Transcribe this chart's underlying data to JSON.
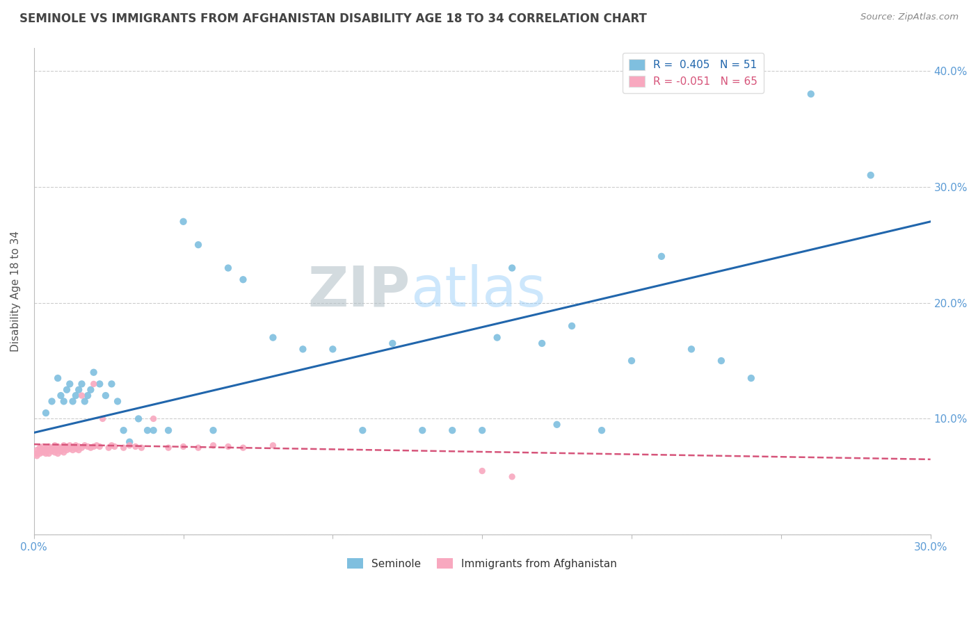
{
  "title": "SEMINOLE VS IMMIGRANTS FROM AFGHANISTAN DISABILITY AGE 18 TO 34 CORRELATION CHART",
  "source": "Source: ZipAtlas.com",
  "ylabel": "Disability Age 18 to 34",
  "xlim": [
    0.0,
    0.3
  ],
  "ylim": [
    0.0,
    0.42
  ],
  "xticks": [
    0.0,
    0.05,
    0.1,
    0.15,
    0.2,
    0.25,
    0.3
  ],
  "yticks": [
    0.0,
    0.1,
    0.2,
    0.3,
    0.4
  ],
  "ytick_labels": [
    "",
    "10.0%",
    "20.0%",
    "30.0%",
    "40.0%"
  ],
  "blue_color": "#7fbfdf",
  "pink_color": "#f8a8bf",
  "blue_line_color": "#2166ac",
  "pink_line_color": "#d6547a",
  "watermark_zip": "ZIP",
  "watermark_atlas": "atlas",
  "seminole_x": [
    0.004,
    0.006,
    0.008,
    0.009,
    0.01,
    0.011,
    0.012,
    0.013,
    0.014,
    0.015,
    0.016,
    0.017,
    0.018,
    0.019,
    0.02,
    0.022,
    0.024,
    0.026,
    0.028,
    0.03,
    0.032,
    0.035,
    0.038,
    0.04,
    0.045,
    0.05,
    0.055,
    0.06,
    0.065,
    0.07,
    0.08,
    0.09,
    0.1,
    0.11,
    0.12,
    0.13,
    0.14,
    0.15,
    0.155,
    0.16,
    0.17,
    0.175,
    0.18,
    0.19,
    0.2,
    0.21,
    0.22,
    0.23,
    0.24,
    0.26,
    0.28
  ],
  "seminole_y": [
    0.105,
    0.115,
    0.135,
    0.12,
    0.115,
    0.125,
    0.13,
    0.115,
    0.12,
    0.125,
    0.13,
    0.115,
    0.12,
    0.125,
    0.14,
    0.13,
    0.12,
    0.13,
    0.115,
    0.09,
    0.08,
    0.1,
    0.09,
    0.09,
    0.09,
    0.27,
    0.25,
    0.09,
    0.23,
    0.22,
    0.17,
    0.16,
    0.16,
    0.09,
    0.165,
    0.09,
    0.09,
    0.09,
    0.17,
    0.23,
    0.165,
    0.095,
    0.18,
    0.09,
    0.15,
    0.24,
    0.16,
    0.15,
    0.135,
    0.38,
    0.31
  ],
  "afghan_x": [
    0.001,
    0.001,
    0.001,
    0.002,
    0.002,
    0.002,
    0.003,
    0.003,
    0.003,
    0.004,
    0.004,
    0.004,
    0.005,
    0.005,
    0.005,
    0.006,
    0.006,
    0.007,
    0.007,
    0.007,
    0.008,
    0.008,
    0.008,
    0.009,
    0.009,
    0.01,
    0.01,
    0.01,
    0.011,
    0.011,
    0.012,
    0.012,
    0.013,
    0.013,
    0.014,
    0.014,
    0.015,
    0.015,
    0.016,
    0.016,
    0.017,
    0.018,
    0.019,
    0.02,
    0.02,
    0.021,
    0.022,
    0.023,
    0.025,
    0.026,
    0.027,
    0.03,
    0.032,
    0.034,
    0.036,
    0.04,
    0.045,
    0.05,
    0.055,
    0.06,
    0.065,
    0.07,
    0.08,
    0.15,
    0.16
  ],
  "afghan_y": [
    0.073,
    0.07,
    0.068,
    0.075,
    0.072,
    0.07,
    0.076,
    0.073,
    0.071,
    0.074,
    0.072,
    0.07,
    0.076,
    0.073,
    0.07,
    0.075,
    0.072,
    0.077,
    0.074,
    0.071,
    0.076,
    0.073,
    0.07,
    0.075,
    0.072,
    0.077,
    0.074,
    0.071,
    0.076,
    0.073,
    0.077,
    0.074,
    0.076,
    0.073,
    0.077,
    0.074,
    0.076,
    0.073,
    0.12,
    0.075,
    0.077,
    0.076,
    0.075,
    0.13,
    0.076,
    0.077,
    0.076,
    0.1,
    0.075,
    0.077,
    0.076,
    0.075,
    0.077,
    0.076,
    0.075,
    0.1,
    0.075,
    0.076,
    0.075,
    0.077,
    0.076,
    0.075,
    0.077,
    0.055,
    0.05
  ],
  "blue_trend_x": [
    0.0,
    0.3
  ],
  "blue_trend_y": [
    0.088,
    0.27
  ],
  "pink_trend_x": [
    0.0,
    0.3
  ],
  "pink_trend_y": [
    0.078,
    0.065
  ],
  "legend_blue_label": "R =  0.405   N = 51",
  "legend_pink_label": "R = -0.051   N = 65",
  "legend_seminole": "Seminole",
  "legend_afghan": "Immigrants from Afghanistan",
  "background_color": "#ffffff",
  "grid_color": "#cccccc",
  "title_color": "#444444",
  "axis_label_color": "#555555",
  "tick_label_color": "#5b9bd5",
  "right_tick_color": "#5b9bd5"
}
